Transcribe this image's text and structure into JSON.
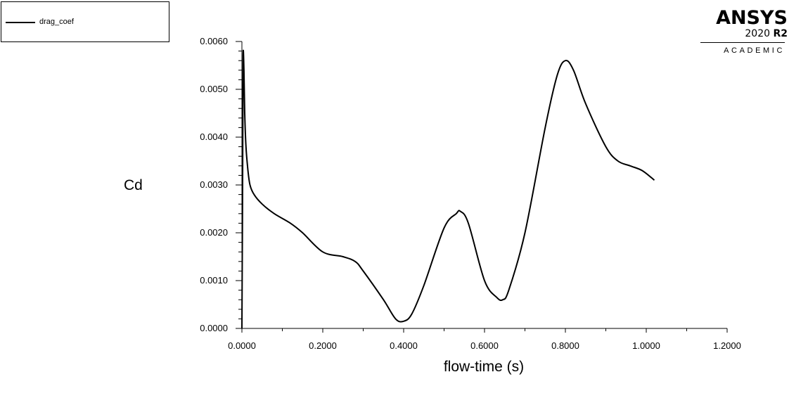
{
  "legend": {
    "label": "drag_coef"
  },
  "logo": {
    "name": "ANSYS",
    "year": "2020",
    "release": "R2",
    "edition": "ACADEMIC"
  },
  "chart_data": {
    "type": "line",
    "xlabel": "flow-time (s)",
    "ylabel": "Cd",
    "xlim": [
      0,
      1.2
    ],
    "ylim": [
      0,
      0.006
    ],
    "xticks": [
      "0.0000",
      "0.2000",
      "0.4000",
      "0.6000",
      "0.8000",
      "1.0000",
      "1.2000"
    ],
    "yticks": [
      "0.0000",
      "0.0010",
      "0.0020",
      "0.0030",
      "0.0040",
      "0.0050",
      "0.0060"
    ],
    "grid": false,
    "legend_position": "top-left",
    "series": [
      {
        "name": "drag_coef",
        "color": "#000000",
        "x": [
          0,
          0.002,
          0.003,
          0.005,
          0.007,
          0.01,
          0.015,
          0.02,
          0.03,
          0.05,
          0.08,
          0.12,
          0.15,
          0.2,
          0.25,
          0.28,
          0.3,
          0.35,
          0.38,
          0.4,
          0.42,
          0.45,
          0.5,
          0.53,
          0.54,
          0.56,
          0.6,
          0.63,
          0.645,
          0.66,
          0.7,
          0.75,
          0.78,
          0.8,
          0.82,
          0.85,
          0.9,
          0.93,
          0.96,
          0.99,
          1.02
        ],
        "y": [
          0.0,
          0.0035,
          0.0057,
          0.0054,
          0.0045,
          0.0038,
          0.0033,
          0.003,
          0.0028,
          0.0026,
          0.0024,
          0.0022,
          0.002,
          0.0016,
          0.0015,
          0.0014,
          0.0012,
          0.0006,
          0.0002,
          0.00015,
          0.0003,
          0.0009,
          0.0021,
          0.0024,
          0.00245,
          0.0022,
          0.001,
          0.00065,
          0.0006,
          0.0008,
          0.002,
          0.0042,
          0.0053,
          0.0056,
          0.0054,
          0.0047,
          0.0038,
          0.0035,
          0.0034,
          0.0033,
          0.0031
        ]
      }
    ]
  }
}
